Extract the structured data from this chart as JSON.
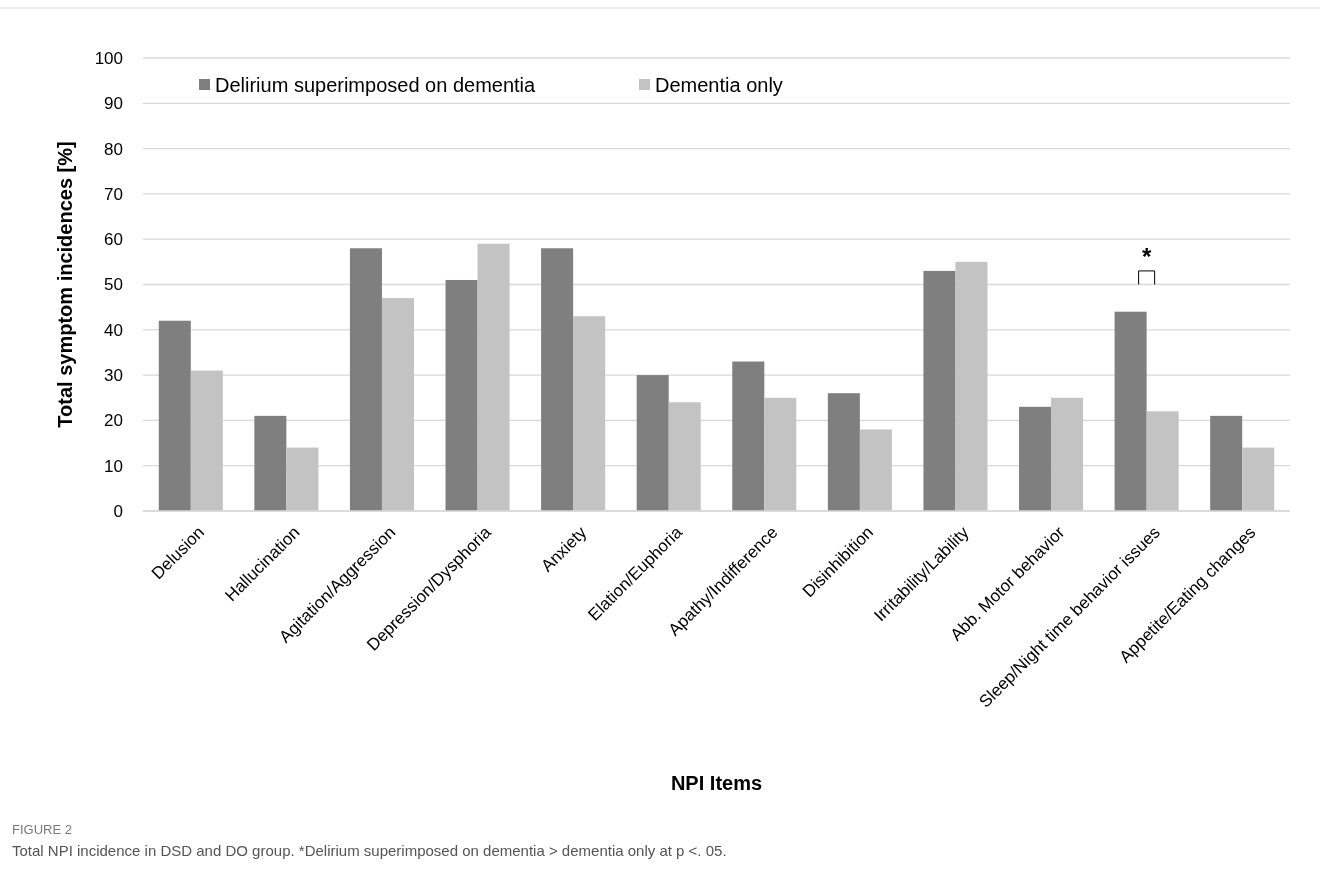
{
  "chart_data": {
    "type": "bar",
    "xlabel": "NPI Items",
    "ylabel": "Total symptom incidences [%]",
    "categories": [
      "Delusion",
      "Hallucination",
      "Agitation/Aggression",
      "Depression/Dysphoria",
      "Anxiety",
      "Elation/Euphoria",
      "Apathy/Indifference",
      "Disinhibition",
      "Irritability/Lability",
      "Abb. Motor behavior",
      "Sleep/Night time behavior issues",
      "Appetite/Eating changes"
    ],
    "series": [
      {
        "name": "Delirium superimposed on dementia",
        "color": "#7f7f7f",
        "values": [
          42,
          21,
          58,
          51,
          58,
          30,
          33,
          26,
          53,
          23,
          44,
          21
        ]
      },
      {
        "name": "Dementia only",
        "color": "#c3c3c3",
        "values": [
          31,
          14,
          47,
          59,
          43,
          24,
          25,
          18,
          55,
          25,
          22,
          14
        ]
      }
    ],
    "ylim": [
      0,
      100
    ],
    "yticks": [
      0,
      10,
      20,
      30,
      40,
      50,
      60,
      70,
      80,
      90,
      100
    ],
    "grid": "y",
    "legend": "top left",
    "annotations": [
      "*",
      "FIGURE 2",
      "Total NPI incidence in DSD and DO group. *Delirium superimposed on dementia > dementia only at p <. 05."
    ]
  }
}
